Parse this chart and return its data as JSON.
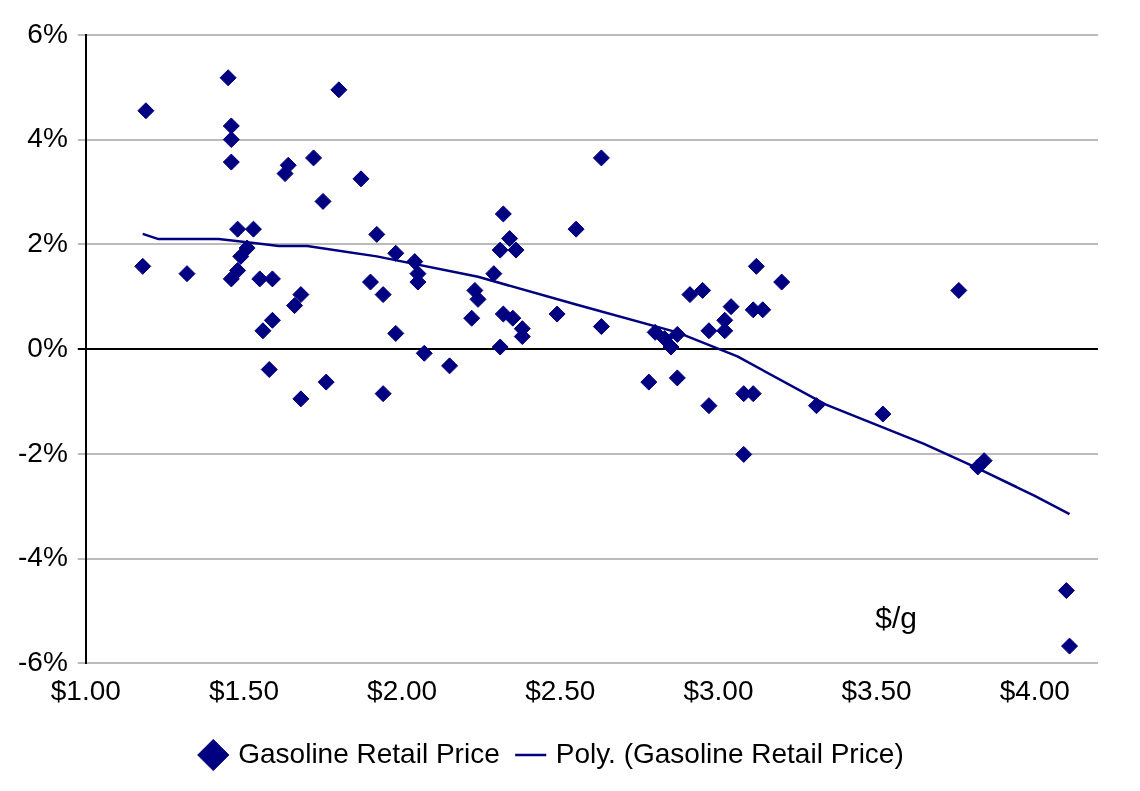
{
  "chart_data": {
    "type": "scatter",
    "xlim": [
      1,
      4.2
    ],
    "xticks": [
      {
        "value": 1,
        "label": "$1.00"
      },
      {
        "value": 1.5,
        "label": "$1.50"
      },
      {
        "value": 2,
        "label": "$2.00"
      },
      {
        "value": 2.5,
        "label": "$2.50"
      },
      {
        "value": 3,
        "label": "$3.00"
      },
      {
        "value": 3.5,
        "label": "$3.50"
      },
      {
        "value": 4,
        "label": "$4.00"
      }
    ],
    "ylim": [
      -6,
      6
    ],
    "yticks": [
      {
        "value": -6,
        "label": "-6%"
      },
      {
        "value": -4,
        "label": "-4%"
      },
      {
        "value": -2,
        "label": "-2%"
      },
      {
        "value": 0,
        "label": "0%"
      },
      {
        "value": 2,
        "label": "2%"
      },
      {
        "value": 4,
        "label": "4%"
      },
      {
        "value": 6,
        "label": "6%"
      }
    ],
    "grid": "y",
    "legend": "bottom",
    "annotations": [
      "$/g"
    ],
    "series": [
      {
        "name": "Gasoline Retail Price",
        "type": "scatter",
        "marker": "diamond",
        "color": "#000080",
        "x": [
          1.19,
          1.18,
          1.32,
          1.45,
          1.46,
          1.46,
          1.46,
          1.48,
          1.53,
          1.46,
          1.48,
          1.49,
          1.51,
          1.55,
          1.59,
          1.56,
          1.59,
          1.58,
          1.64,
          1.63,
          1.66,
          1.68,
          1.68,
          1.72,
          1.75,
          1.76,
          1.8,
          1.87,
          1.92,
          1.9,
          1.94,
          1.94,
          1.98,
          1.98,
          2.04,
          2.05,
          2.05,
          2.07,
          2.15,
          2.22,
          2.23,
          2.24,
          2.29,
          2.31,
          2.32,
          2.32,
          2.31,
          2.34,
          2.35,
          2.36,
          2.38,
          2.38,
          2.49,
          2.55,
          2.63,
          2.63,
          2.78,
          2.8,
          2.83,
          2.85,
          2.87,
          2.87,
          2.91,
          2.95,
          2.97,
          2.97,
          3.02,
          3.02,
          3.04,
          3.08,
          3.11,
          3.08,
          3.11,
          3.12,
          3.14,
          3.2,
          3.31,
          3.52,
          3.76,
          3.82,
          3.84,
          4.1,
          4.11
        ],
        "values": [
          4.55,
          1.58,
          1.44,
          5.18,
          4.26,
          4.0,
          3.57,
          2.29,
          2.29,
          1.34,
          1.5,
          1.77,
          1.93,
          1.34,
          1.34,
          0.35,
          0.55,
          -0.39,
          3.51,
          3.35,
          0.83,
          1.04,
          -0.95,
          3.65,
          2.82,
          -0.63,
          4.95,
          3.25,
          2.19,
          1.28,
          1.04,
          -0.85,
          1.83,
          0.3,
          1.67,
          1.44,
          1.28,
          -0.08,
          -0.32,
          0.59,
          1.12,
          0.95,
          1.44,
          1.89,
          2.58,
          0.67,
          0.04,
          2.11,
          0.59,
          1.89,
          0.39,
          0.24,
          0.67,
          2.29,
          3.65,
          0.43,
          -0.63,
          0.32,
          0.2,
          0.04,
          0.28,
          -0.55,
          1.04,
          1.12,
          0.35,
          -1.08,
          0.35,
          0.55,
          0.81,
          -0.85,
          -0.85,
          -2.01,
          0.75,
          1.58,
          0.75,
          1.28,
          -1.08,
          -1.24,
          1.12,
          -2.25,
          -2.13,
          -4.61,
          -5.67
        ]
      },
      {
        "name": "Poly. (Gasoline Retail Price)",
        "type": "line",
        "marker": "none",
        "line_style": "solid",
        "color": "#000080",
        "x": [
          1.18,
          1.23,
          1.42,
          1.61,
          1.7,
          1.92,
          2.24,
          2.55,
          2.87,
          3.06,
          3.34,
          3.65,
          3.81,
          4.0,
          4.11
        ],
        "values": [
          2.2,
          2.1,
          2.1,
          1.97,
          1.97,
          1.77,
          1.38,
          0.85,
          0.32,
          -0.14,
          -1.06,
          -1.81,
          -2.25,
          -2.8,
          -3.15
        ]
      }
    ]
  }
}
